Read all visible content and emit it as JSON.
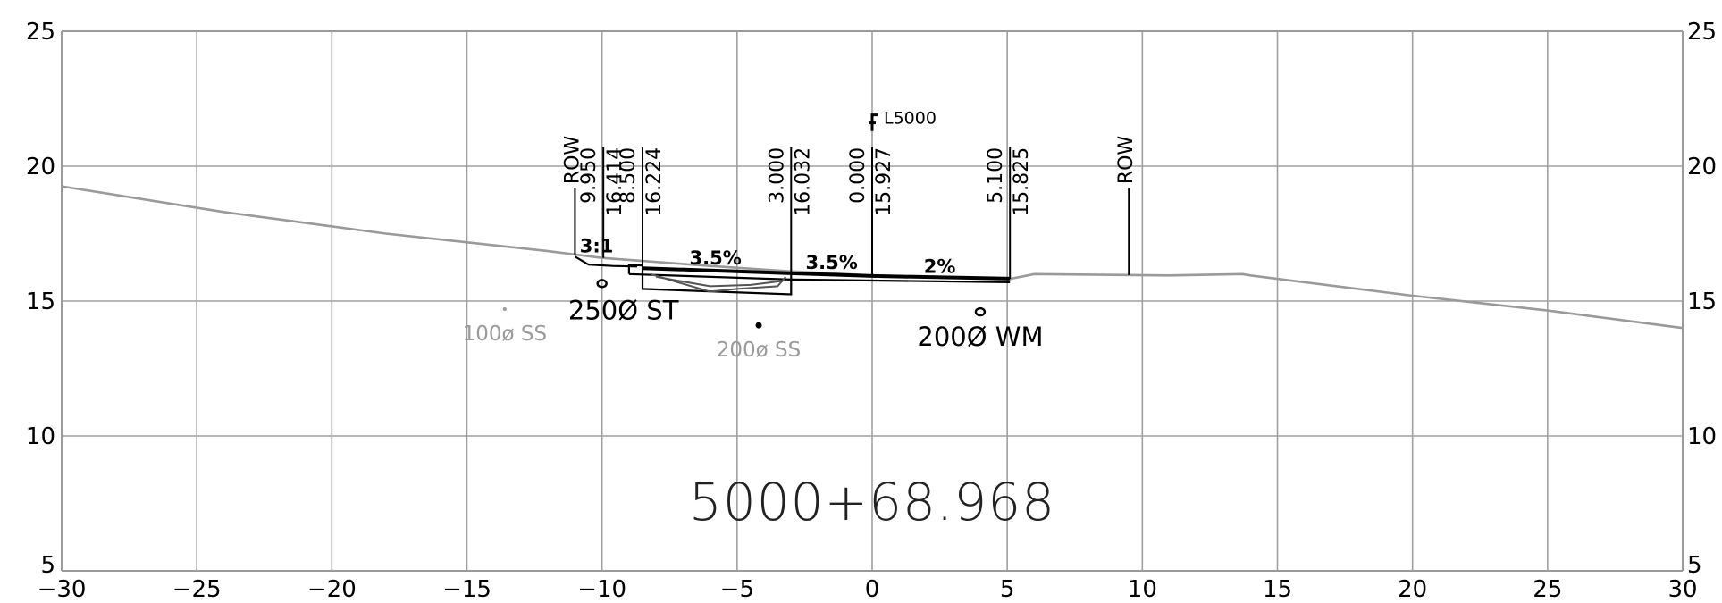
{
  "chart_data": {
    "type": "cross-section",
    "xlim": [
      -30,
      30
    ],
    "ylim": [
      5,
      25
    ],
    "x_ticks": [
      -30,
      -25,
      -20,
      -15,
      -10,
      -5,
      0,
      5,
      10,
      15,
      20,
      25,
      30
    ],
    "x_tick_labels": [
      "−30",
      "−25",
      "−20",
      "−15",
      "−10",
      "−5",
      "0",
      "5",
      "10",
      "15",
      "20",
      "25",
      "30"
    ],
    "y_ticks": [
      5,
      10,
      15,
      20,
      25
    ],
    "y_tick_labels": [
      "5",
      "10",
      "15",
      "20",
      "25"
    ],
    "grid": true,
    "station": "5000+68.968",
    "centerline": {
      "x": 0,
      "label": "L5000"
    },
    "existing_ground": [
      [
        -30,
        19.25
      ],
      [
        -24,
        18.3
      ],
      [
        -18,
        17.5
      ],
      [
        -12,
        16.85
      ],
      [
        -10,
        16.6
      ],
      [
        -8,
        16.45
      ],
      [
        -6,
        16.3
      ],
      [
        -3,
        16.1
      ],
      [
        0,
        15.95
      ],
      [
        5.1,
        15.82
      ],
      [
        6,
        16.0
      ],
      [
        11,
        15.95
      ],
      [
        13.7,
        16.0
      ],
      [
        14,
        15.95
      ],
      [
        20,
        15.2
      ],
      [
        25,
        14.65
      ],
      [
        30,
        14.0
      ]
    ],
    "road_surface": [
      [
        -8.5,
        16.22
      ],
      [
        -3,
        16.03
      ],
      [
        0,
        15.93
      ],
      [
        5.1,
        15.83
      ]
    ],
    "offsets": [
      {
        "x": -11,
        "labels": [
          "ROW"
        ]
      },
      {
        "x": -9.95,
        "labels": [
          "9.950",
          "16.414"
        ]
      },
      {
        "x": -8.5,
        "labels": [
          "8.500",
          "16.224"
        ]
      },
      {
        "x": -3,
        "labels": [
          "3.000",
          "16.032"
        ]
      },
      {
        "x": 0,
        "labels": [
          "0.000",
          "15.927"
        ]
      },
      {
        "x": 5.1,
        "labels": [
          "5.100",
          "15.825"
        ]
      },
      {
        "x": 9.5,
        "labels": [
          "ROW"
        ]
      }
    ],
    "slopes": [
      {
        "x": -10.2,
        "y": 16.8,
        "label": "3:1"
      },
      {
        "x": -5.8,
        "y": 16.35,
        "label": "3.5%"
      },
      {
        "x": -1.5,
        "y": 16.2,
        "label": "3.5%"
      },
      {
        "x": 2.5,
        "y": 16.05,
        "label": "2%"
      }
    ],
    "utilities": [
      {
        "x": -10,
        "y": 15.65,
        "label": "250Ø ST",
        "style": "dark"
      },
      {
        "x": 4,
        "y": 14.6,
        "label": "200Ø WM",
        "style": "dark"
      },
      {
        "x": -4.2,
        "y": 14.1,
        "label": "200ø  SS",
        "style": "grey"
      },
      {
        "x": -13.6,
        "y": 14.7,
        "label": "100ø  SS",
        "style": "grey"
      }
    ]
  }
}
